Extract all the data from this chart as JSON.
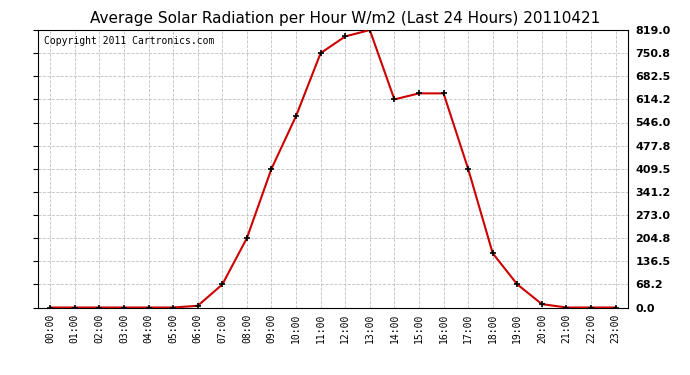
{
  "title": "Average Solar Radiation per Hour W/m2 (Last 24 Hours) 20110421",
  "copyright": "Copyright 2011 Cartronics.com",
  "hours": [
    "00:00",
    "01:00",
    "02:00",
    "03:00",
    "04:00",
    "05:00",
    "06:00",
    "07:00",
    "08:00",
    "09:00",
    "10:00",
    "11:00",
    "12:00",
    "13:00",
    "14:00",
    "15:00",
    "16:00",
    "17:00",
    "18:00",
    "19:00",
    "20:00",
    "21:00",
    "22:00",
    "23:00"
  ],
  "values": [
    0.0,
    0.0,
    0.0,
    0.0,
    0.0,
    0.0,
    5.0,
    68.0,
    204.8,
    409.5,
    565.0,
    750.8,
    800.0,
    819.0,
    614.2,
    632.0,
    632.0,
    409.5,
    160.0,
    68.2,
    10.0,
    0.0,
    0.0,
    0.0
  ],
  "ymin": 0.0,
  "ymax": 819.0,
  "yticks": [
    0.0,
    68.2,
    136.5,
    204.8,
    273.0,
    341.2,
    409.5,
    477.8,
    546.0,
    614.2,
    682.5,
    750.8,
    819.0
  ],
  "line_color": "#cc0000",
  "marker_color": "#000000",
  "bg_color": "#ffffff",
  "grid_color": "#bbbbbb",
  "title_fontsize": 11,
  "copyright_fontsize": 7
}
